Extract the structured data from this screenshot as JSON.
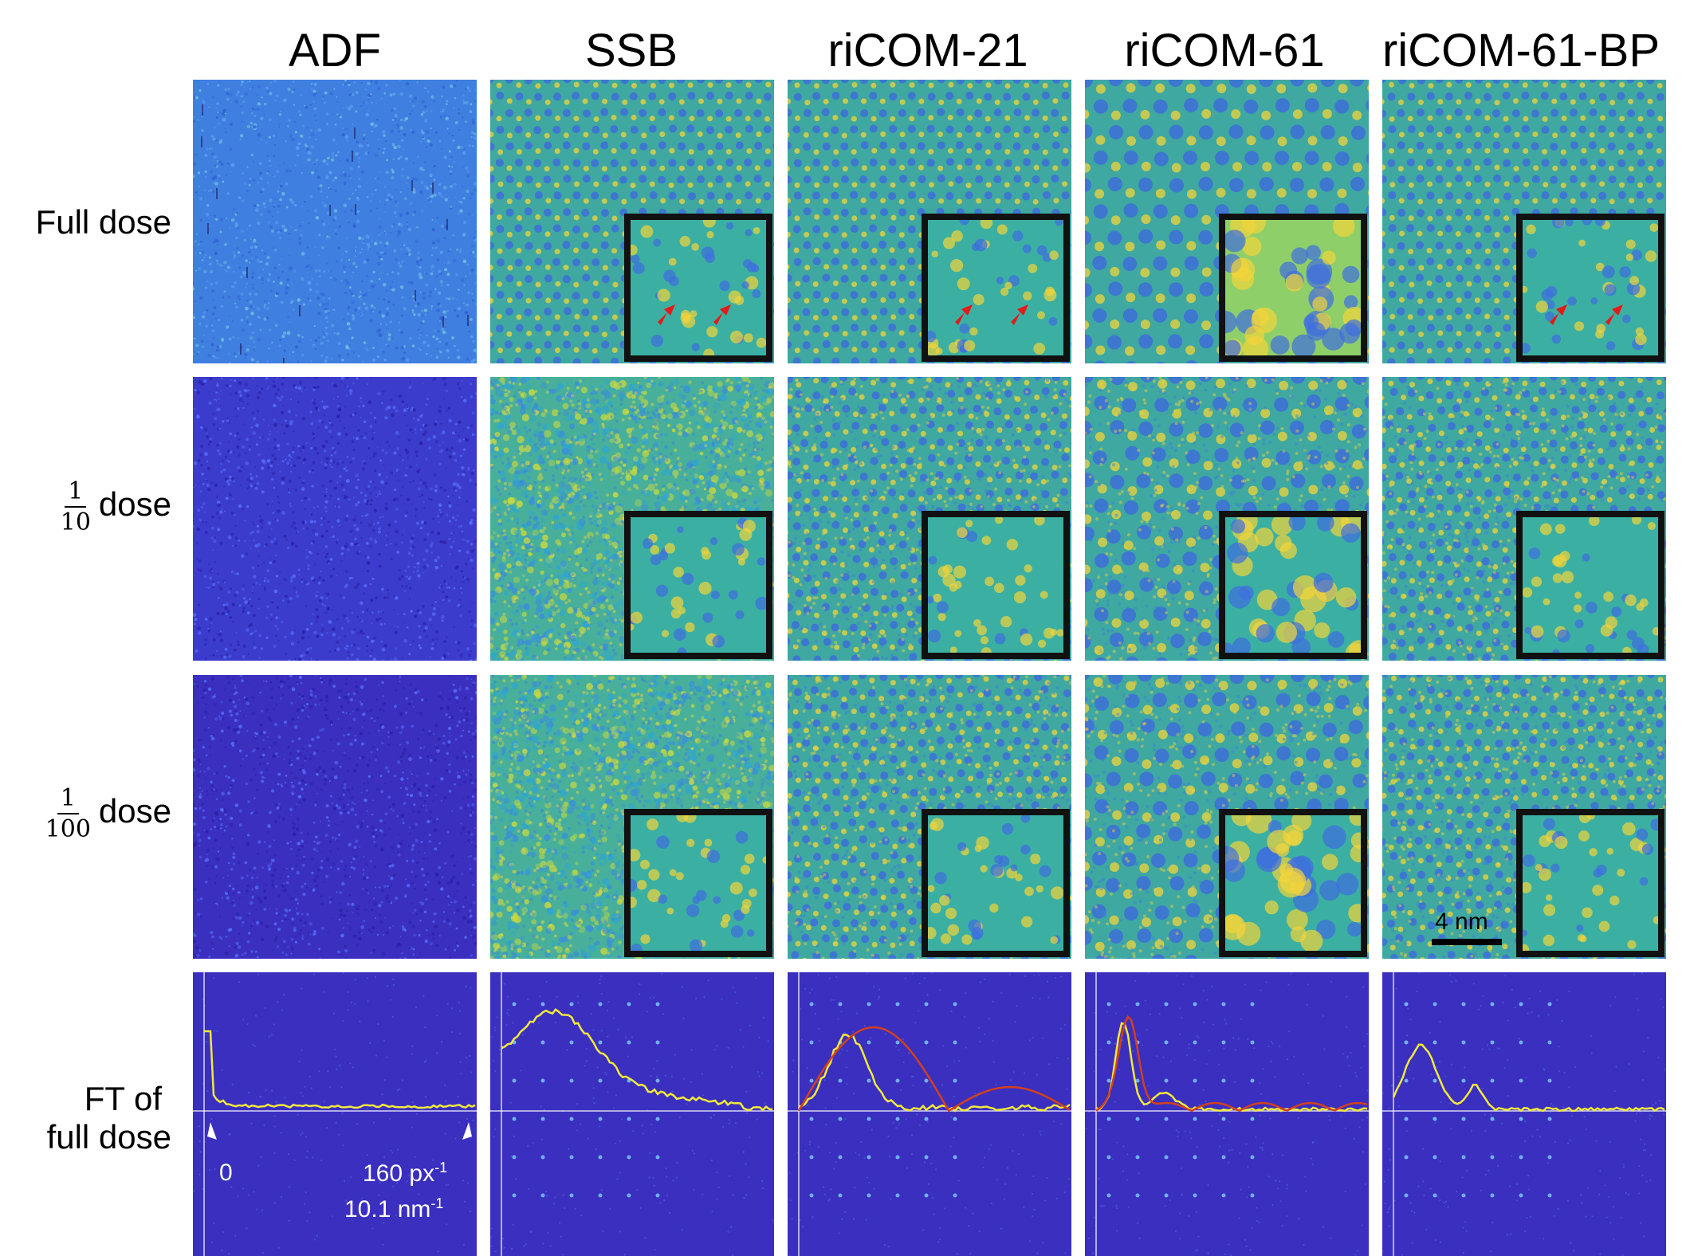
{
  "columns": [
    "ADF",
    "SSB",
    "riCOM-21",
    "riCOM-61",
    "riCOM-61-BP"
  ],
  "rows": {
    "full": "Full dose",
    "tenth": {
      "num": "1",
      "den": "10",
      "suffix": "dose"
    },
    "hundredth": {
      "num": "1",
      "den": "100",
      "suffix": "dose"
    },
    "ft": [
      "FT of",
      "full dose"
    ]
  },
  "annotations": {
    "zero": "0",
    "px": "160 px",
    "px_sup": "-1",
    "nm": "10.1 nm",
    "nm_sup": "-1",
    "scale": "4 nm"
  },
  "colors": {
    "dark_blue": "#3a2fbf",
    "mid_blue": "#3f7fe0",
    "teal": "#3fa8a0",
    "yellow": "#f2d43a",
    "profile_yellow": "#f2ea3a",
    "profile_red": "#d2401e",
    "arrow_red": "#e31a1a"
  },
  "icons": [
    "red-arrow-icon",
    "white-arrow-icon"
  ]
}
